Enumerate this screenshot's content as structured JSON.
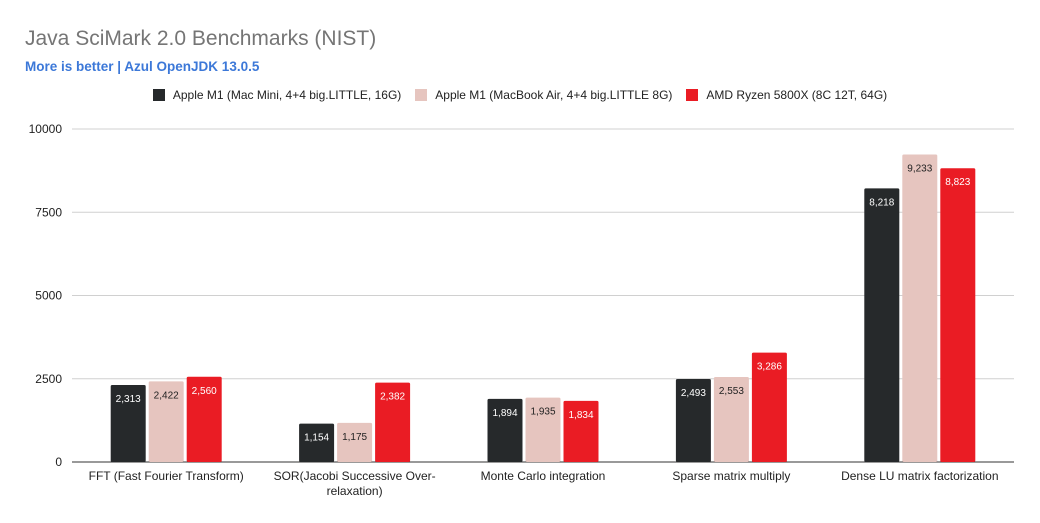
{
  "chart_data": {
    "type": "bar",
    "title": "Java SciMark 2.0 Benchmarks (NIST)",
    "subtitle": "More is better | Azul OpenJDK 13.0.5",
    "categories": [
      [
        "FFT (Fast Fourier Transform)"
      ],
      [
        "SOR(Jacobi Successive Over-",
        "relaxation)"
      ],
      [
        "Monte Carlo integration"
      ],
      [
        "Sparse matrix multiply"
      ],
      [
        "Dense LU matrix factorization"
      ]
    ],
    "series": [
      {
        "name": "Apple M1 (Mac Mini, 4+4 big.LITTLE, 16G)",
        "color": "#26292b",
        "label_color": "#ffffff",
        "values": [
          2313,
          1154,
          1894,
          2493,
          8218
        ],
        "labels": [
          "2,313",
          "1,154",
          "1,894",
          "2,493",
          "8,218"
        ]
      },
      {
        "name": "Apple M1 (MacBook Air, 4+4 big.LITTLE 8G)",
        "color": "#e6c5bf",
        "label_color": "#222222",
        "values": [
          2422,
          1175,
          1935,
          2553,
          9233
        ],
        "labels": [
          "2,422",
          "1,175",
          "1,935",
          "2,553",
          "9,233"
        ]
      },
      {
        "name": "AMD Ryzen 5800X (8C 12T, 64G)",
        "color": "#ea1c24",
        "label_color": "#ffffff",
        "values": [
          2560,
          2382,
          1834,
          3286,
          8823
        ],
        "labels": [
          "2,560",
          "2,382",
          "1,834",
          "3,286",
          "8,823"
        ]
      }
    ],
    "yticks": [
      0,
      2500,
      5000,
      7500,
      10000
    ],
    "ylim": [
      0,
      10000
    ],
    "grid": true,
    "legend_position": "top-center",
    "xlabel": "",
    "ylabel": ""
  }
}
